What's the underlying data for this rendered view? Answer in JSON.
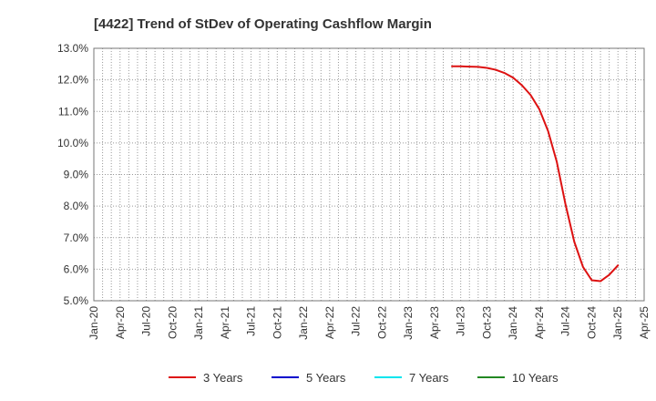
{
  "chart_data": {
    "type": "line",
    "title": "[4422]  Trend of StDev of Operating Cashflow Margin",
    "xlabel": "",
    "ylabel": "",
    "x_ticks": [
      "Jan-20",
      "Apr-20",
      "Jul-20",
      "Oct-20",
      "Jan-21",
      "Apr-21",
      "Jul-21",
      "Oct-21",
      "Jan-22",
      "Apr-22",
      "Jul-22",
      "Oct-22",
      "Jan-23",
      "Apr-23",
      "Jul-23",
      "Oct-23",
      "Jan-24",
      "Apr-24",
      "Jul-24",
      "Oct-24",
      "Jan-25",
      "Apr-25"
    ],
    "y_ticks": [
      "5.0%",
      "6.0%",
      "7.0%",
      "8.0%",
      "9.0%",
      "10.0%",
      "11.0%",
      "12.0%",
      "13.0%"
    ],
    "ylim": [
      5.0,
      13.0
    ],
    "grid": true,
    "legend_position": "bottom",
    "series": [
      {
        "name": "3 Years",
        "color": "#dd1111",
        "points": [
          [
            "Jun-23",
            12.43
          ],
          [
            "Jul-23",
            12.43
          ],
          [
            "Aug-23",
            12.42
          ],
          [
            "Sep-23",
            12.41
          ],
          [
            "Oct-23",
            12.38
          ],
          [
            "Nov-23",
            12.32
          ],
          [
            "Dec-23",
            12.22
          ],
          [
            "Jan-24",
            12.07
          ],
          [
            "Feb-24",
            11.83
          ],
          [
            "Mar-24",
            11.52
          ],
          [
            "Apr-24",
            11.07
          ],
          [
            "May-24",
            10.38
          ],
          [
            "Jun-24",
            9.4
          ],
          [
            "Jul-24",
            8.05
          ],
          [
            "Aug-24",
            6.87
          ],
          [
            "Sep-24",
            6.07
          ],
          [
            "Oct-24",
            5.65
          ],
          [
            "Nov-24",
            5.62
          ],
          [
            "Dec-24",
            5.82
          ],
          [
            "Jan-25",
            6.12
          ]
        ]
      },
      {
        "name": "5 Years",
        "color": "#0000cc",
        "points": []
      },
      {
        "name": "7 Years",
        "color": "#00e5ee",
        "points": []
      },
      {
        "name": "10 Years",
        "color": "#228822",
        "points": []
      }
    ]
  }
}
